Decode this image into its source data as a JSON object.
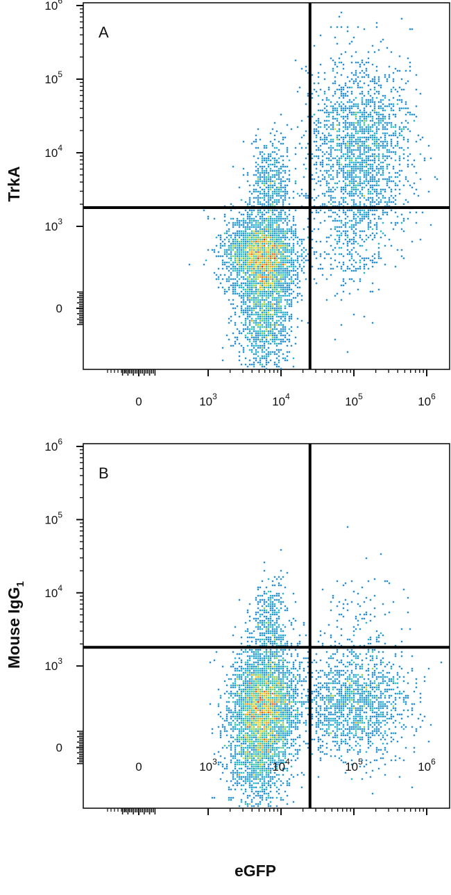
{
  "chart_data": [
    {
      "type": "scatter",
      "plot_style": "flow cytometry pseudocolor density plot with quadrant gates",
      "panel_label": "A",
      "ylabel": "TrkA",
      "xlabel": "",
      "scale": "biexponential (log above 10^3, linear near 0)",
      "x_ticks": [
        {
          "value": 0,
          "label": "0"
        },
        {
          "value": 1000,
          "label": "10",
          "exp": "3"
        },
        {
          "value": 10000,
          "label": "10",
          "exp": "4"
        },
        {
          "value": 100000,
          "label": "10",
          "exp": "5"
        },
        {
          "value": 1000000,
          "label": "10",
          "exp": "6"
        }
      ],
      "y_ticks": [
        {
          "value": 0,
          "label": "0"
        },
        {
          "value": 1000,
          "label": "10",
          "exp": "3"
        },
        {
          "value": 10000,
          "label": "10",
          "exp": "4"
        },
        {
          "value": 100000,
          "label": "10",
          "exp": "5"
        },
        {
          "value": 1000000,
          "label": "10",
          "exp": "6"
        }
      ],
      "quadrant_gate": {
        "x": 25000,
        "y": 1800
      },
      "populations": [
        {
          "name": "eGFP-negative, TrkA-low (main)",
          "x_center": 5500,
          "y_center": 650,
          "density": "very high",
          "color": "#ff2200"
        },
        {
          "name": "eGFP-negative, low/negative tail",
          "x_center": 6000,
          "y_center": -50,
          "density": "medium",
          "color": "#1fa8d8"
        },
        {
          "name": "eGFP-negative, TrkA-high (sparse)",
          "x_center": 7000,
          "y_center": 4000,
          "density": "low",
          "color": "#2a3fb0"
        },
        {
          "name": "eGFP-positive, TrkA-high",
          "x_center": 120000,
          "y_center": 12000,
          "density": "medium",
          "color": "#25b5d8"
        },
        {
          "name": "eGFP-positive, TrkA-low (sparse)",
          "x_center": 100000,
          "y_center": 900,
          "density": "low",
          "color": "#2a3fb0"
        }
      ]
    },
    {
      "type": "scatter",
      "plot_style": "flow cytometry pseudocolor density plot with quadrant gates",
      "panel_label": "B",
      "ylabel": "Mouse IgG",
      "ylabel_sub": "1",
      "xlabel": "eGFP",
      "scale": "biexponential (log above 10^3, linear near 0)",
      "x_ticks": [
        {
          "value": 0,
          "label": "0"
        },
        {
          "value": 1000,
          "label": "10",
          "exp": "3"
        },
        {
          "value": 10000,
          "label": "10",
          "exp": "4"
        },
        {
          "value": 100000,
          "label": "10",
          "exp": "5"
        },
        {
          "value": 1000000,
          "label": "10",
          "exp": "6"
        }
      ],
      "y_ticks": [
        {
          "value": 0,
          "label": "0"
        },
        {
          "value": 1000,
          "label": "10",
          "exp": "3"
        },
        {
          "value": 10000,
          "label": "10",
          "exp": "4"
        },
        {
          "value": 100000,
          "label": "10",
          "exp": "5"
        },
        {
          "value": 1000000,
          "label": "10",
          "exp": "6"
        }
      ],
      "quadrant_gate": {
        "x": 25000,
        "y": 1800
      },
      "populations": [
        {
          "name": "eGFP-negative, isotype-low (main)",
          "x_center": 6000,
          "y_center": 550,
          "density": "very high",
          "color": "#ff2200"
        },
        {
          "name": "eGFP-negative, low/negative tail",
          "x_center": 5000,
          "y_center": -50,
          "density": "medium",
          "color": "#2a8fd0"
        },
        {
          "name": "eGFP-negative, sparse high",
          "x_center": 7000,
          "y_center": 3500,
          "density": "low",
          "color": "#2a3fb0"
        },
        {
          "name": "eGFP-positive, isotype-low",
          "x_center": 100000,
          "y_center": 550,
          "density": "medium",
          "color": "#2fb7c8"
        },
        {
          "name": "eGFP-positive, sparse high",
          "x_center": 100000,
          "y_center": 4000,
          "density": "very low",
          "color": "#2a3fb0"
        }
      ]
    }
  ]
}
